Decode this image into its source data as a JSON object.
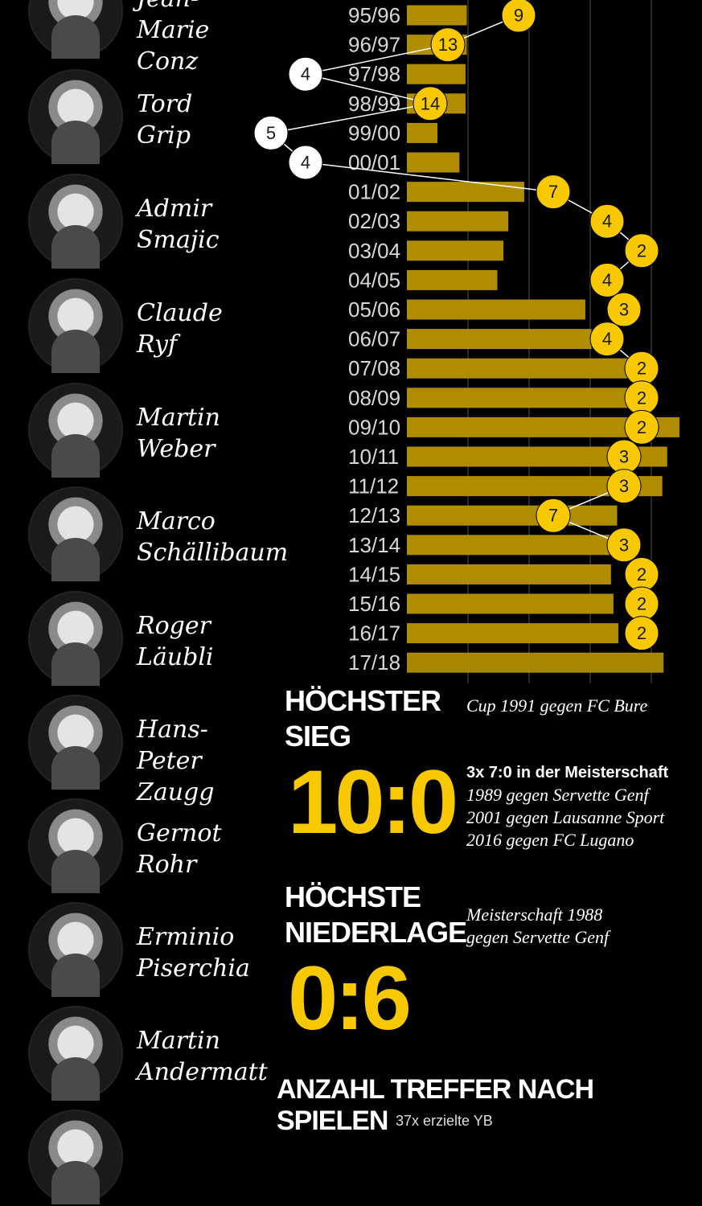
{
  "coaches": [
    {
      "first": "Jean-Marie",
      "last": "Conz"
    },
    {
      "first": "Tord",
      "last": "Grip"
    },
    {
      "first": "Admir",
      "last": "Smajic"
    },
    {
      "first": "Claude",
      "last": "Ryf"
    },
    {
      "first": "Martin",
      "last": "Weber"
    },
    {
      "first": "Marco",
      "last": "Schällibaum"
    },
    {
      "first": "Roger",
      "last": "Läubli"
    },
    {
      "first": "Hans-Peter",
      "last": "Zaugg"
    },
    {
      "first": "Gernot",
      "last": "Rohr"
    },
    {
      "first": "Erminio",
      "last": "Piserchia"
    },
    {
      "first": "Martin",
      "last": "Andermatt"
    }
  ],
  "chart_data": {
    "type": "bar",
    "orientation": "horizontal",
    "categories": [
      "95/96",
      "96/97",
      "97/98",
      "98/99",
      "99/00",
      "00/01",
      "01/02",
      "02/03",
      "03/04",
      "04/05",
      "05/06",
      "06/07",
      "07/08",
      "08/09",
      "09/10",
      "10/11",
      "11/12",
      "12/13",
      "13/14",
      "14/15",
      "15/16",
      "16/17",
      "17/18"
    ],
    "values": [
      4.9,
      4.9,
      4.8,
      4.8,
      2.5,
      4.3,
      9.6,
      8.3,
      7.9,
      7.4,
      14.6,
      15.1,
      18.6,
      18.7,
      22.3,
      21.3,
      20.9,
      17.2,
      16.8,
      16.7,
      16.9,
      17.3,
      21.0
    ],
    "gridlines": [
      5,
      10,
      15,
      20
    ],
    "rank_badges": [
      {
        "season": "95/96",
        "rank": 9,
        "color": "#f8c900"
      },
      {
        "season": "96/97",
        "rank": 13,
        "color": "#f8c900"
      },
      {
        "season": "97/98",
        "rank": 4,
        "color": "#ffffff"
      },
      {
        "season": "98/99",
        "rank": 14,
        "color": "#f8c900"
      },
      {
        "season": "99/00",
        "rank": 5,
        "color": "#ffffff"
      },
      {
        "season": "00/01",
        "rank": 4,
        "color": "#ffffff"
      },
      {
        "season": "01/02",
        "rank": 7,
        "color": "#f8c900"
      },
      {
        "season": "02/03",
        "rank": 4,
        "color": "#f8c900"
      },
      {
        "season": "03/04",
        "rank": 2,
        "color": "#f8c900"
      },
      {
        "season": "04/05",
        "rank": 4,
        "color": "#f8c900"
      },
      {
        "season": "05/06",
        "rank": 3,
        "color": "#f8c900"
      },
      {
        "season": "06/07",
        "rank": 4,
        "color": "#f8c900"
      },
      {
        "season": "07/08",
        "rank": 2,
        "color": "#f8c900"
      },
      {
        "season": "08/09",
        "rank": 2,
        "color": "#f8c900"
      },
      {
        "season": "09/10",
        "rank": 2,
        "color": "#f8c900"
      },
      {
        "season": "10/11",
        "rank": 3,
        "color": "#f8c900"
      },
      {
        "season": "11/12",
        "rank": 3,
        "color": "#f8c900"
      },
      {
        "season": "12/13",
        "rank": 7,
        "color": "#f8c900"
      },
      {
        "season": "13/14",
        "rank": 3,
        "color": "#f8c900"
      },
      {
        "season": "14/15",
        "rank": 2,
        "color": "#f8c900"
      },
      {
        "season": "15/16",
        "rank": 2,
        "color": "#f8c900"
      },
      {
        "season": "16/17",
        "rank": 2,
        "color": "#f8c900"
      }
    ],
    "bar_color": "#b08d00",
    "badge_color": "#f8c900",
    "grid_color": "#555555"
  },
  "records": {
    "win": {
      "heading_line1": "HÖCHSTER",
      "heading_line2": "SIEG",
      "score": "10:0",
      "note1": "Cup 1991 gegen FC Bure",
      "note2_bold": "3x 7:0 in der Meisterschaft",
      "note3": "1989 gegen Servette Genf",
      "note4": "2001 gegen Lausanne Sport",
      "note5": "2016 gegen FC Lugano"
    },
    "loss": {
      "heading_line1": "HÖCHSTE",
      "heading_line2": "NIEDERLAGE",
      "score": "0:6",
      "note1": "Meisterschaft 1988",
      "note2": "gegen Servette Genf"
    }
  },
  "footer": {
    "title": "ANZAHL TREFFER NACH SPIELEN",
    "subtitle": "37x erzielte YB"
  }
}
